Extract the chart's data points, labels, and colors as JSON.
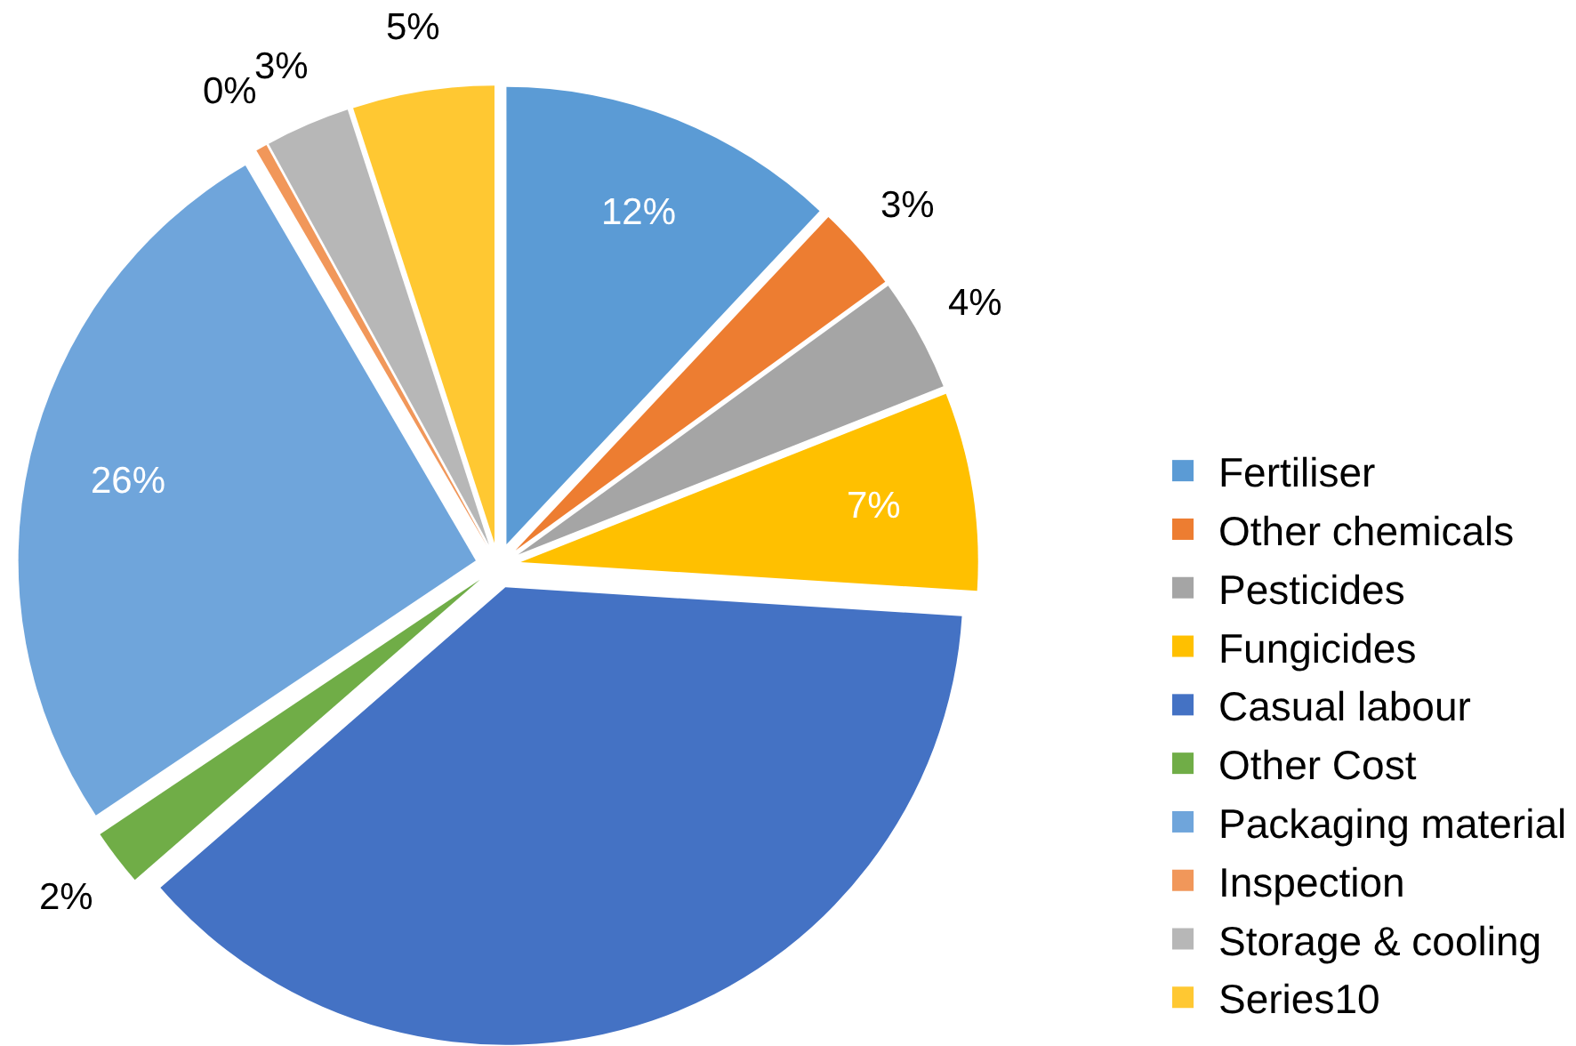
{
  "chart_data": {
    "type": "pie",
    "categories": [
      "Fertiliser",
      "Other chemicals",
      "Pesticides",
      "Fungicides",
      "Casual labour",
      "Other Cost",
      "Packaging material",
      "Inspection",
      "Storage & cooling",
      "Series10"
    ],
    "values": [
      12,
      3,
      4,
      7,
      37.6,
      2,
      26,
      0.4,
      3,
      5
    ],
    "value_labels": [
      "12%",
      "3%",
      "4%",
      "7%",
      null,
      "2%",
      "26%",
      "0%",
      "3%",
      "5%"
    ],
    "colors": [
      "#5b9bd5",
      "#ed7d31",
      "#a5a5a5",
      "#ffc000",
      "#4472c4",
      "#70ad47",
      "#6fa5db",
      "#f1975a",
      "#b7b7b7",
      "#ffc832"
    ],
    "legend": "bottom right"
  }
}
